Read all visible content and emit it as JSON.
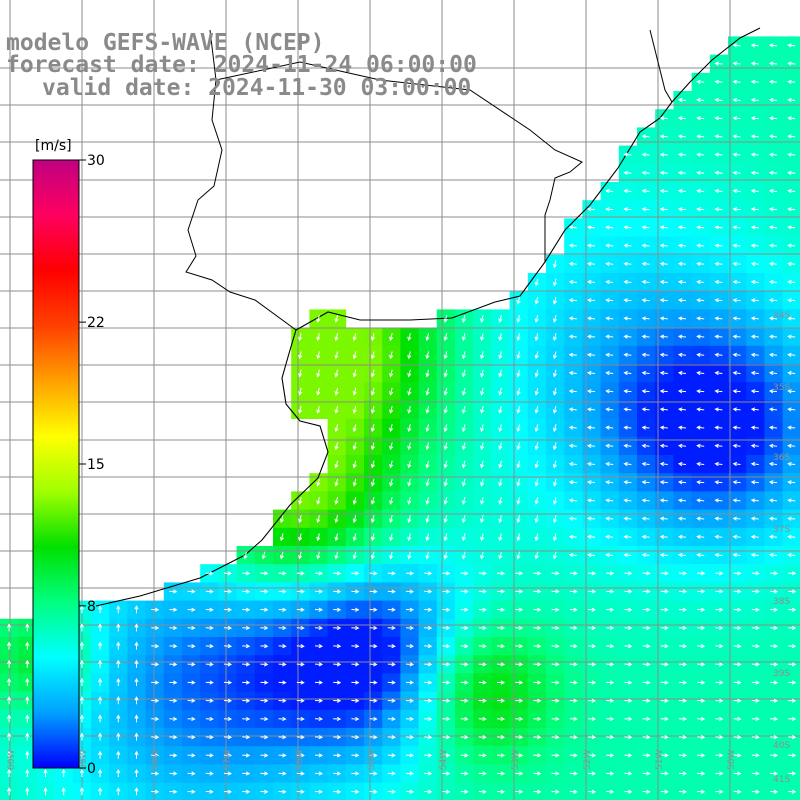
{
  "title": {
    "line1": "modelo GEFS-WAVE (NCEP)",
    "line2": "forecast date: 2024-11-24 06:00:00",
    "line3": "valid date: 2024-11-30 03:00:00"
  },
  "colorbar": {
    "unit": "[m/s]",
    "ticks": [
      {
        "value": 30,
        "label": "30"
      },
      {
        "value": 22,
        "label": "22"
      },
      {
        "value": 15,
        "label": "15"
      },
      {
        "value": 8,
        "label": "8"
      },
      {
        "value": 0,
        "label": "0"
      }
    ],
    "range": [
      0,
      30
    ],
    "colors": [
      "#0000ff",
      "#00a0ff",
      "#00ffff",
      "#00ff80",
      "#00e000",
      "#a0ff00",
      "#ffff00",
      "#ffa000",
      "#ff4000",
      "#ff0000",
      "#ff0060",
      "#c00080"
    ]
  },
  "lat_labels": [
    "34S",
    "35S",
    "36S",
    "37S",
    "38S",
    "39S",
    "40S",
    "41S"
  ],
  "lon_labels": [
    "60W",
    "59W",
    "58W",
    "57W",
    "56W",
    "55W",
    "54W",
    "53W",
    "52W",
    "51W",
    "50W"
  ],
  "map": {
    "land_color": "#ffffff",
    "coast_color": "#000000",
    "grid_color": "#8c8c8c",
    "arrow_color": "#ffffff"
  }
}
